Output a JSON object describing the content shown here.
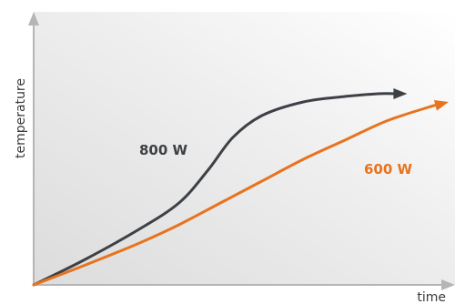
{
  "chart_data": {
    "type": "line",
    "title": "",
    "xlabel": "time",
    "ylabel": "temperature",
    "grid": false,
    "legend": "inline labels",
    "series": [
      {
        "name": "800 W",
        "color": "#3d4146",
        "values": [
          [
            0,
            0
          ],
          [
            0.12,
            0.09
          ],
          [
            0.25,
            0.2
          ],
          [
            0.35,
            0.3
          ],
          [
            0.42,
            0.42
          ],
          [
            0.48,
            0.54
          ],
          [
            0.55,
            0.62
          ],
          [
            0.65,
            0.67
          ],
          [
            0.75,
            0.69
          ],
          [
            0.83,
            0.7
          ],
          [
            0.9,
            0.7
          ]
        ]
      },
      {
        "name": "600 W",
        "color": "#e8731e",
        "values": [
          [
            0,
            0
          ],
          [
            0.12,
            0.07
          ],
          [
            0.25,
            0.15
          ],
          [
            0.35,
            0.22
          ],
          [
            0.45,
            0.3
          ],
          [
            0.55,
            0.38
          ],
          [
            0.65,
            0.46
          ],
          [
            0.75,
            0.53
          ],
          [
            0.85,
            0.6
          ],
          [
            0.95,
            0.65
          ],
          [
            1.0,
            0.67
          ]
        ]
      }
    ]
  }
}
